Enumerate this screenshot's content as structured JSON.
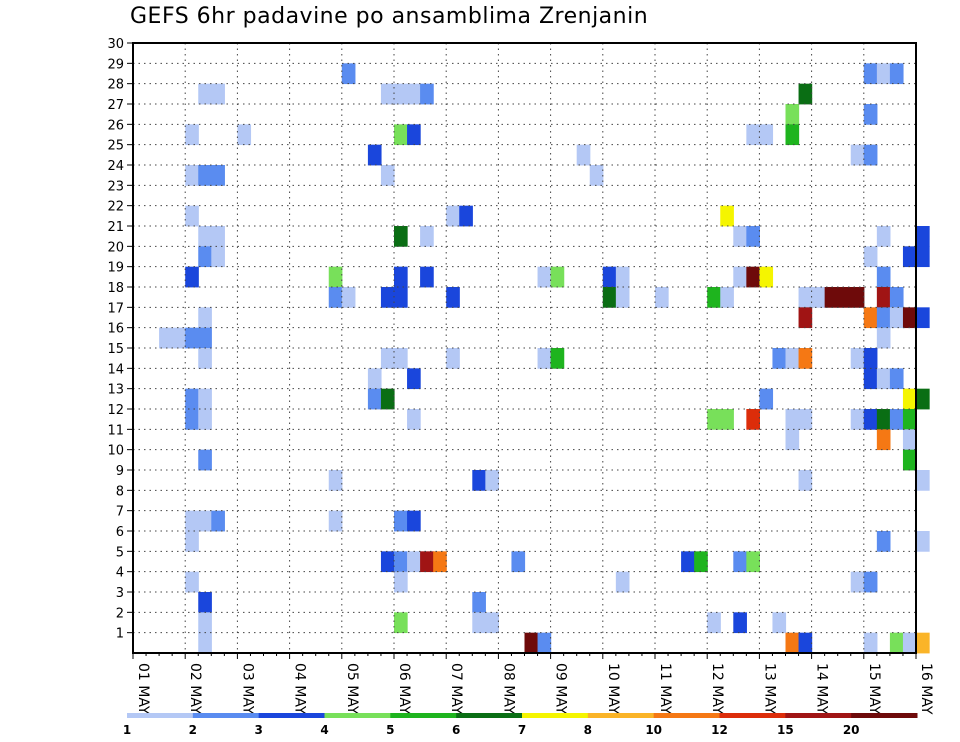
{
  "title": "GEFS 6hr padavine po ansamblima Zrenjanin",
  "chart_data": {
    "type": "heatmap",
    "title": "GEFS 6hr padavine po ansamblima Zrenjanin",
    "xlabel": "",
    "ylabel": "",
    "x_tick_labels": [
      "01 MAY",
      "02 MAY",
      "03 MAY",
      "04 MAY",
      "05 MAY",
      "06 MAY",
      "07 MAY",
      "08 MAY",
      "09 MAY",
      "10 MAY",
      "11 MAY",
      "12 MAY",
      "13 MAY",
      "14 MAY",
      "15 MAY",
      "16 MAY"
    ],
    "y_tick_labels": [
      "1",
      "2",
      "3",
      "4",
      "5",
      "6",
      "7",
      "8",
      "9",
      "10",
      "11",
      "12",
      "13",
      "14",
      "15",
      "16",
      "17",
      "18",
      "19",
      "20",
      "21",
      "22",
      "23",
      "24",
      "25",
      "26",
      "27",
      "28",
      "29",
      "30"
    ],
    "ylim": [
      0,
      30
    ],
    "x_range_days": [
      0,
      15
    ],
    "time_step_days": 0.25,
    "grid": true,
    "color_bins": [
      {
        "label": "1",
        "color": "#b4c8f5"
      },
      {
        "label": "2",
        "color": "#5a8cf0"
      },
      {
        "label": "3",
        "color": "#1a46dc"
      },
      {
        "label": "4",
        "color": "#78e05a"
      },
      {
        "label": "5",
        "color": "#1eb41e"
      },
      {
        "label": "6",
        "color": "#0a6e14"
      },
      {
        "label": "7",
        "color": "#f5f500"
      },
      {
        "label": "8",
        "color": "#fab428"
      },
      {
        "label": "10",
        "color": "#f57814"
      },
      {
        "label": "12",
        "color": "#dc2d0a"
      },
      {
        "label": "15",
        "color": "#a01414"
      },
      {
        "label": "20",
        "color": "#6e0a0a"
      }
    ],
    "cells": [
      [
        4.0,
        29,
        2
      ],
      [
        14.0,
        29,
        2
      ],
      [
        14.25,
        29,
        1
      ],
      [
        14.5,
        29,
        2
      ],
      [
        1.25,
        28,
        1
      ],
      [
        1.5,
        28,
        1
      ],
      [
        4.75,
        28,
        1
      ],
      [
        5.0,
        28,
        1
      ],
      [
        5.25,
        28,
        1
      ],
      [
        5.5,
        28,
        2
      ],
      [
        12.75,
        28,
        6
      ],
      [
        12.5,
        27,
        4
      ],
      [
        14.0,
        27,
        2
      ],
      [
        1.0,
        26,
        1
      ],
      [
        2.0,
        26,
        1
      ],
      [
        5.0,
        26,
        4
      ],
      [
        5.25,
        26,
        3
      ],
      [
        11.75,
        26,
        1
      ],
      [
        12.0,
        26,
        1
      ],
      [
        12.5,
        26,
        5
      ],
      [
        4.5,
        25,
        3
      ],
      [
        8.5,
        25,
        1
      ],
      [
        13.75,
        25,
        1
      ],
      [
        14.0,
        25,
        2
      ],
      [
        1.0,
        24,
        1
      ],
      [
        1.25,
        24,
        2
      ],
      [
        1.5,
        24,
        2
      ],
      [
        4.75,
        24,
        1
      ],
      [
        8.75,
        24,
        1
      ],
      [
        1.0,
        22,
        1
      ],
      [
        6.0,
        22,
        1
      ],
      [
        6.25,
        22,
        3
      ],
      [
        11.25,
        22,
        7
      ],
      [
        1.25,
        21,
        1
      ],
      [
        1.5,
        21,
        1
      ],
      [
        5.0,
        21,
        6
      ],
      [
        5.5,
        21,
        1
      ],
      [
        11.5,
        21,
        1
      ],
      [
        11.75,
        21,
        2
      ],
      [
        14.25,
        21,
        1
      ],
      [
        15.0,
        21,
        3
      ],
      [
        1.25,
        20,
        2
      ],
      [
        1.5,
        20,
        1
      ],
      [
        14.0,
        20,
        1
      ],
      [
        14.75,
        20,
        3
      ],
      [
        15.0,
        20,
        3
      ],
      [
        1.0,
        19,
        3
      ],
      [
        3.75,
        19,
        4
      ],
      [
        5.0,
        19,
        3
      ],
      [
        5.5,
        19,
        3
      ],
      [
        7.75,
        19,
        1
      ],
      [
        8.0,
        19,
        4
      ],
      [
        9.0,
        19,
        3
      ],
      [
        9.25,
        19,
        1
      ],
      [
        11.5,
        19,
        1
      ],
      [
        11.75,
        19,
        12
      ],
      [
        12.0,
        19,
        7
      ],
      [
        14.25,
        19,
        2
      ],
      [
        3.75,
        18,
        2
      ],
      [
        4.0,
        18,
        1
      ],
      [
        4.75,
        18,
        3
      ],
      [
        5.0,
        18,
        3
      ],
      [
        6.0,
        18,
        3
      ],
      [
        9.0,
        18,
        6
      ],
      [
        9.25,
        18,
        1
      ],
      [
        10.0,
        18,
        1
      ],
      [
        11.0,
        18,
        5
      ],
      [
        11.25,
        18,
        1
      ],
      [
        12.75,
        18,
        1
      ],
      [
        13.0,
        18,
        1
      ],
      [
        13.25,
        18,
        12
      ],
      [
        13.5,
        18,
        12
      ],
      [
        13.75,
        18,
        12
      ],
      [
        14.25,
        18,
        11
      ],
      [
        14.5,
        18,
        2
      ],
      [
        1.25,
        17,
        1
      ],
      [
        14.0,
        17,
        9
      ],
      [
        14.25,
        17,
        2
      ],
      [
        14.5,
        17,
        1
      ],
      [
        14.75,
        17,
        12
      ],
      [
        15.0,
        17,
        3
      ],
      [
        12.75,
        17,
        11
      ],
      [
        0.5,
        16,
        1
      ],
      [
        0.75,
        16,
        1
      ],
      [
        1.0,
        16,
        2
      ],
      [
        1.25,
        16,
        2
      ],
      [
        14.25,
        16,
        1
      ],
      [
        1.25,
        15,
        1
      ],
      [
        4.75,
        15,
        1
      ],
      [
        5.0,
        15,
        1
      ],
      [
        6.0,
        15,
        1
      ],
      [
        7.75,
        15,
        1
      ],
      [
        8.0,
        15,
        5
      ],
      [
        12.25,
        15,
        2
      ],
      [
        12.5,
        15,
        1
      ],
      [
        12.75,
        15,
        9
      ],
      [
        13.75,
        15,
        1
      ],
      [
        14.0,
        15,
        3
      ],
      [
        4.5,
        14,
        1
      ],
      [
        5.25,
        14,
        3
      ],
      [
        14.0,
        14,
        3
      ],
      [
        14.25,
        14,
        1
      ],
      [
        14.5,
        14,
        2
      ],
      [
        1.0,
        13,
        2
      ],
      [
        1.25,
        13,
        1
      ],
      [
        4.5,
        13,
        2
      ],
      [
        4.75,
        13,
        6
      ],
      [
        12.0,
        13,
        2
      ],
      [
        14.75,
        13,
        7
      ],
      [
        15.0,
        13,
        6
      ],
      [
        1.0,
        12,
        2
      ],
      [
        1.25,
        12,
        1
      ],
      [
        5.25,
        12,
        1
      ],
      [
        11.0,
        12,
        4
      ],
      [
        11.25,
        12,
        4
      ],
      [
        11.75,
        12,
        10
      ],
      [
        12.5,
        12,
        1
      ],
      [
        12.75,
        12,
        1
      ],
      [
        13.75,
        12,
        1
      ],
      [
        14.0,
        12,
        3
      ],
      [
        14.25,
        12,
        6
      ],
      [
        14.5,
        12,
        2
      ],
      [
        14.75,
        12,
        5
      ],
      [
        12.5,
        11,
        1
      ],
      [
        14.25,
        11,
        9
      ],
      [
        14.75,
        11,
        1
      ],
      [
        1.25,
        10,
        2
      ],
      [
        14.75,
        10,
        5
      ],
      [
        3.75,
        9,
        1
      ],
      [
        6.5,
        9,
        3
      ],
      [
        6.75,
        9,
        1
      ],
      [
        12.75,
        9,
        1
      ],
      [
        15.0,
        9,
        1
      ],
      [
        1.0,
        7,
        1
      ],
      [
        1.25,
        7,
        1
      ],
      [
        1.5,
        7,
        2
      ],
      [
        3.75,
        7,
        1
      ],
      [
        5.0,
        7,
        2
      ],
      [
        5.25,
        7,
        3
      ],
      [
        1.0,
        6,
        1
      ],
      [
        14.25,
        6,
        2
      ],
      [
        15.0,
        6,
        1
      ],
      [
        4.75,
        5,
        3
      ],
      [
        5.0,
        5,
        2
      ],
      [
        5.25,
        5,
        1
      ],
      [
        5.5,
        5,
        11
      ],
      [
        5.75,
        5,
        9
      ],
      [
        7.25,
        5,
        2
      ],
      [
        10.5,
        5,
        3
      ],
      [
        10.75,
        5,
        5
      ],
      [
        11.5,
        5,
        2
      ],
      [
        11.75,
        5,
        4
      ],
      [
        1.0,
        4,
        1
      ],
      [
        5.0,
        4,
        1
      ],
      [
        9.25,
        4,
        1
      ],
      [
        13.75,
        4,
        1
      ],
      [
        14.0,
        4,
        2
      ],
      [
        1.25,
        3,
        3
      ],
      [
        6.5,
        3,
        2
      ],
      [
        1.25,
        2,
        1
      ],
      [
        5.0,
        2,
        4
      ],
      [
        6.5,
        2,
        1
      ],
      [
        6.75,
        2,
        1
      ],
      [
        11.0,
        2,
        1
      ],
      [
        11.5,
        2,
        3
      ],
      [
        12.25,
        2,
        1
      ],
      [
        1.25,
        1,
        1
      ],
      [
        7.5,
        1,
        12
      ],
      [
        7.75,
        1,
        2
      ],
      [
        12.5,
        1,
        9
      ],
      [
        12.75,
        1,
        3
      ],
      [
        14.0,
        1,
        1
      ],
      [
        14.5,
        1,
        4
      ],
      [
        14.75,
        1,
        1
      ],
      [
        15.0,
        1,
        8
      ]
    ]
  }
}
